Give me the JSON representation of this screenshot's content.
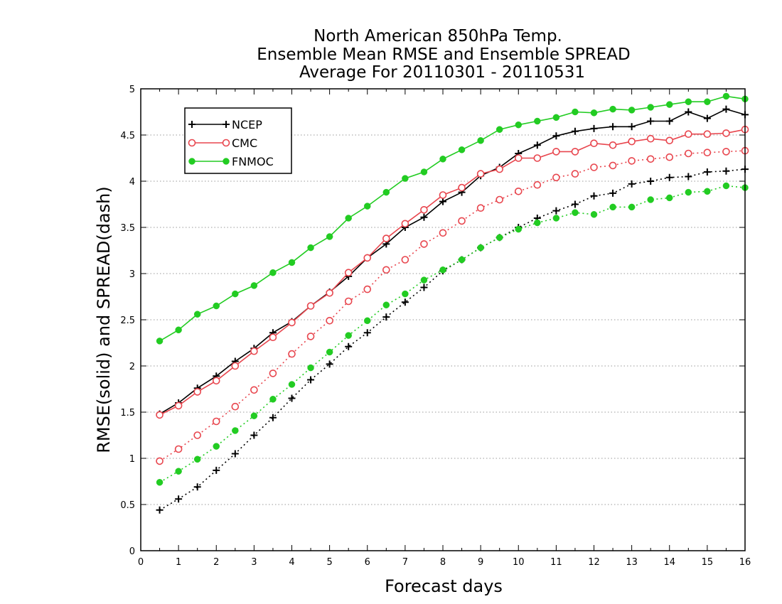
{
  "chart_data": {
    "type": "line",
    "title_lines": [
      "North American 850hPa Temp.",
      "Ensemble Mean RMSE and Ensemble SPREAD",
      "Average For 20110301 - 20110531"
    ],
    "xlabel": "Forecast days",
    "ylabel": "RMSE(solid) and SPREAD(dash)",
    "xlim": [
      0,
      16
    ],
    "ylim": [
      0,
      5
    ],
    "xticks": [
      "0",
      "1",
      "2",
      "3",
      "4",
      "5",
      "6",
      "7",
      "8",
      "9",
      "10",
      "11",
      "12",
      "13",
      "14",
      "15",
      "16"
    ],
    "yticks": [
      "0",
      "0.5",
      "1",
      "1.5",
      "2",
      "2.5",
      "3",
      "3.5",
      "4",
      "4.5",
      "5"
    ],
    "grid": "horizontal dotted",
    "legend_position": "top-left",
    "x": [
      0.5,
      1,
      1.5,
      2,
      2.5,
      3,
      3.5,
      4,
      4.5,
      5,
      5.5,
      6,
      6.5,
      7,
      7.5,
      8,
      8.5,
      9,
      9.5,
      10,
      10.5,
      11,
      11.5,
      12,
      12.5,
      13,
      13.5,
      14,
      14.5,
      15,
      15.5,
      16
    ],
    "series": [
      {
        "name": "NCEP",
        "metric": "RMSE",
        "style": "solid",
        "marker": "plus",
        "color": "#000000",
        "values": [
          1.48,
          1.6,
          1.76,
          1.89,
          2.05,
          2.19,
          2.36,
          2.48,
          2.65,
          2.8,
          2.97,
          3.17,
          3.32,
          3.5,
          3.61,
          3.78,
          3.88,
          4.06,
          4.15,
          4.3,
          4.39,
          4.49,
          4.54,
          4.57,
          4.59,
          4.59,
          4.65,
          4.65,
          4.75,
          4.68,
          4.78,
          4.72
        ]
      },
      {
        "name": "CMC",
        "metric": "RMSE",
        "style": "solid",
        "marker": "open-circle",
        "color": "#e8464e",
        "values": [
          1.47,
          1.57,
          1.72,
          1.84,
          2.0,
          2.16,
          2.31,
          2.47,
          2.65,
          2.79,
          3.01,
          3.17,
          3.38,
          3.54,
          3.69,
          3.85,
          3.93,
          4.08,
          4.13,
          4.25,
          4.25,
          4.32,
          4.32,
          4.41,
          4.39,
          4.43,
          4.46,
          4.44,
          4.51,
          4.51,
          4.52,
          4.56
        ]
      },
      {
        "name": "FNMOC",
        "metric": "RMSE",
        "style": "solid",
        "marker": "filled-circle",
        "color": "#22cc22",
        "values": [
          2.27,
          2.39,
          2.56,
          2.65,
          2.78,
          2.87,
          3.01,
          3.12,
          3.28,
          3.4,
          3.6,
          3.73,
          3.88,
          4.03,
          4.1,
          4.24,
          4.34,
          4.44,
          4.56,
          4.61,
          4.65,
          4.69,
          4.75,
          4.74,
          4.78,
          4.77,
          4.8,
          4.83,
          4.86,
          4.86,
          4.92,
          4.89
        ]
      },
      {
        "name": "NCEP",
        "metric": "SPREAD",
        "style": "dotted",
        "marker": "plus",
        "color": "#000000",
        "values": [
          0.44,
          0.56,
          0.69,
          0.87,
          1.05,
          1.25,
          1.44,
          1.65,
          1.85,
          2.02,
          2.21,
          2.36,
          2.53,
          2.69,
          2.85,
          3.03,
          3.15,
          3.28,
          3.39,
          3.5,
          3.6,
          3.68,
          3.75,
          3.84,
          3.87,
          3.97,
          4.0,
          4.04,
          4.05,
          4.1,
          4.11,
          4.13
        ]
      },
      {
        "name": "CMC",
        "metric": "SPREAD",
        "style": "dotted",
        "marker": "open-circle",
        "color": "#e8464e",
        "values": [
          0.97,
          1.1,
          1.25,
          1.4,
          1.56,
          1.74,
          1.92,
          2.13,
          2.32,
          2.49,
          2.7,
          2.83,
          3.04,
          3.15,
          3.32,
          3.44,
          3.57,
          3.71,
          3.8,
          3.89,
          3.96,
          4.04,
          4.08,
          4.15,
          4.17,
          4.22,
          4.24,
          4.26,
          4.3,
          4.31,
          4.32,
          4.33
        ]
      },
      {
        "name": "FNMOC",
        "metric": "SPREAD",
        "style": "dotted",
        "marker": "filled-circle",
        "color": "#22cc22",
        "values": [
          0.74,
          0.86,
          0.99,
          1.13,
          1.3,
          1.46,
          1.64,
          1.8,
          1.98,
          2.15,
          2.33,
          2.49,
          2.66,
          2.78,
          2.93,
          3.04,
          3.15,
          3.28,
          3.39,
          3.48,
          3.55,
          3.6,
          3.66,
          3.64,
          3.72,
          3.72,
          3.8,
          3.82,
          3.88,
          3.89,
          3.95,
          3.93
        ]
      }
    ]
  }
}
